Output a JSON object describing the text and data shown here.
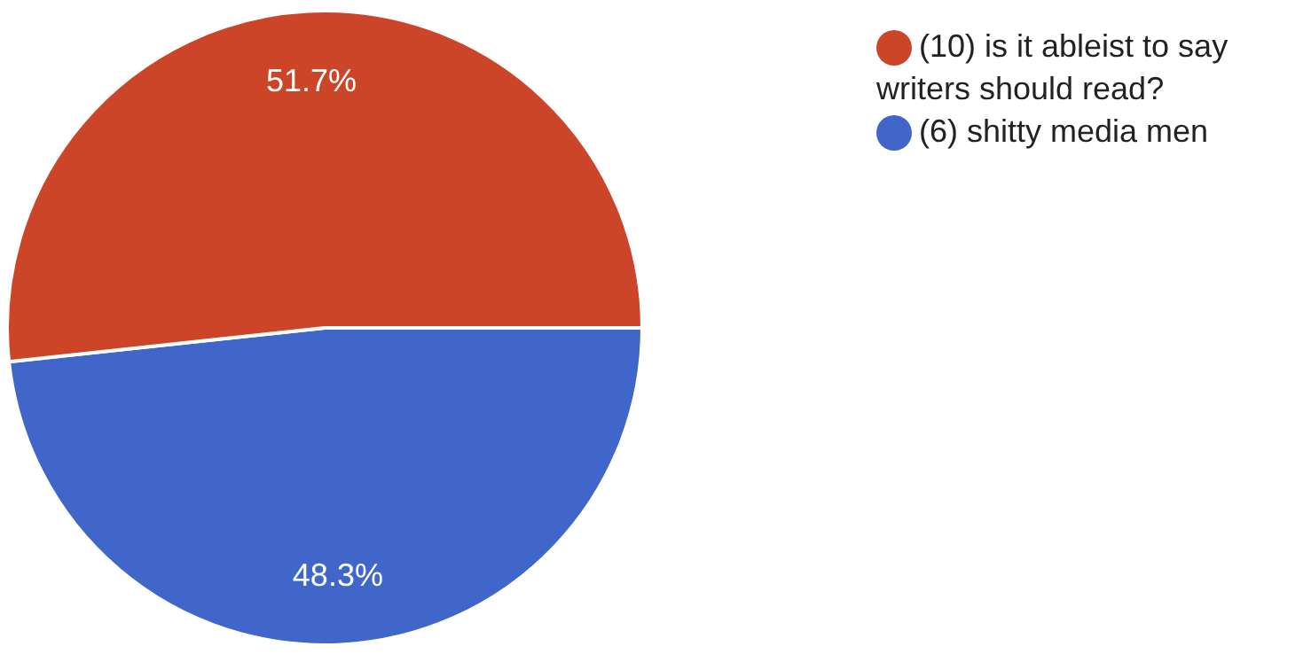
{
  "chart_data": {
    "type": "pie",
    "categories": [
      "(6) shitty media men",
      "(10) is it ableist to say writers should read?"
    ],
    "values": [
      48.3,
      51.7
    ],
    "colors": [
      "#3f66c8",
      "#cc4529"
    ],
    "value_labels": [
      "48.3%",
      "51.7%"
    ],
    "legend": "top right"
  }
}
